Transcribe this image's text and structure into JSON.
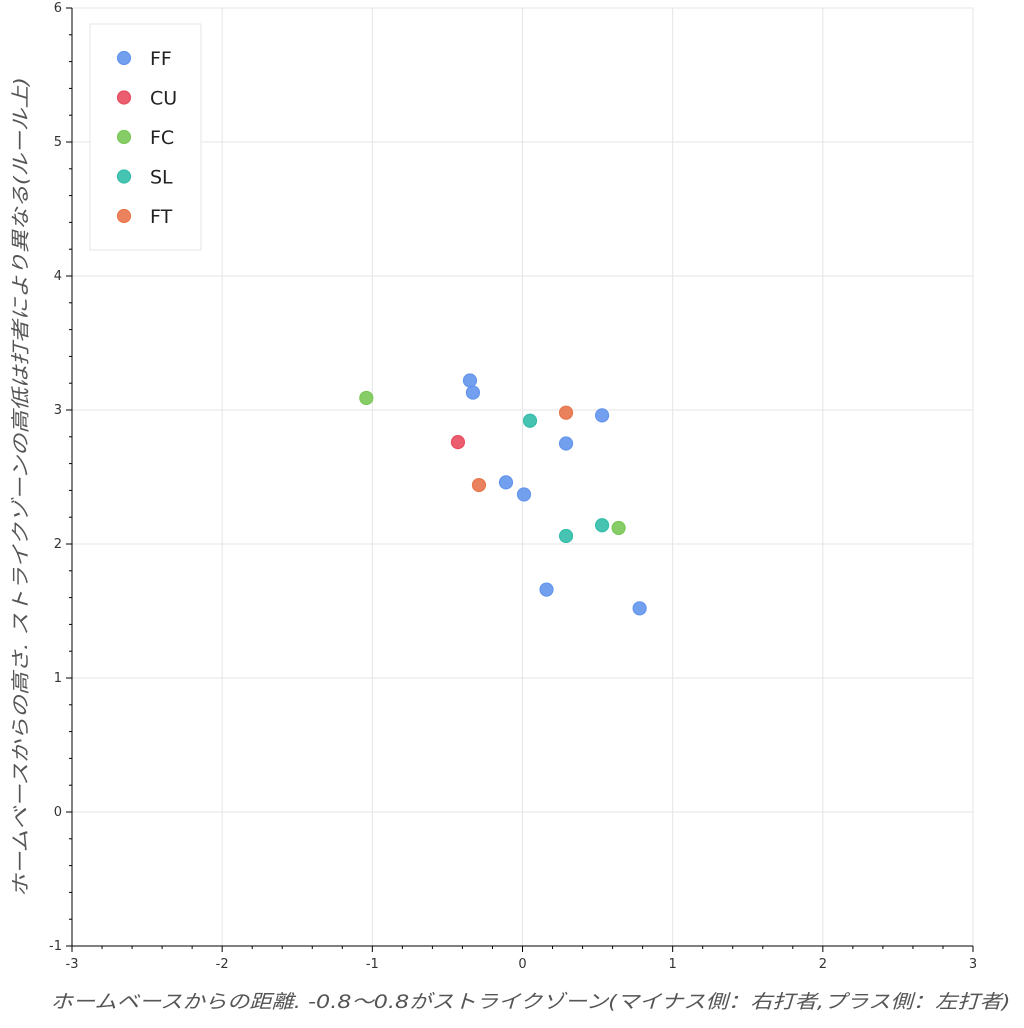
{
  "chart_data": {
    "type": "scatter",
    "title": "",
    "xlabel": "ホームベースからの距離. -0.8〜0.8がストライクゾーン(マイナス側：右打者,プラス側：左打者)",
    "ylabel": "ホームベースからの高さ. ストライクゾーンの高低は打者により異なる(ルール上)",
    "xlim": [
      -3,
      3
    ],
    "ylim": [
      -1,
      6
    ],
    "x_ticks": [
      "-3",
      "-2",
      "-1",
      "0",
      "1",
      "2",
      "3"
    ],
    "y_ticks": [
      "-1",
      "0",
      "1",
      "2",
      "3",
      "4",
      "5",
      "6"
    ],
    "grid": true,
    "legend_position": "top-left",
    "series": [
      {
        "name": "FF",
        "color": "#6495ed",
        "points": [
          {
            "x": -0.35,
            "y": 3.22
          },
          {
            "x": -0.33,
            "y": 3.13
          },
          {
            "x": 0.29,
            "y": 2.75
          },
          {
            "x": 0.53,
            "y": 2.96
          },
          {
            "x": -0.11,
            "y": 2.46
          },
          {
            "x": 0.01,
            "y": 2.37
          },
          {
            "x": 0.16,
            "y": 1.66
          },
          {
            "x": 0.78,
            "y": 1.52
          }
        ]
      },
      {
        "name": "CU",
        "color": "#e84d60",
        "points": [
          {
            "x": -0.43,
            "y": 2.76
          }
        ]
      },
      {
        "name": "FC",
        "color": "#7ac857",
        "points": [
          {
            "x": -1.04,
            "y": 3.09
          },
          {
            "x": 0.64,
            "y": 2.12
          }
        ]
      },
      {
        "name": "SL",
        "color": "#33bdaa",
        "points": [
          {
            "x": 0.05,
            "y": 2.92
          },
          {
            "x": 0.53,
            "y": 2.14
          },
          {
            "x": 0.29,
            "y": 2.06
          }
        ]
      },
      {
        "name": "FT",
        "color": "#e8764b",
        "points": [
          {
            "x": 0.29,
            "y": 2.98
          },
          {
            "x": -0.29,
            "y": 2.44
          }
        ]
      }
    ]
  }
}
